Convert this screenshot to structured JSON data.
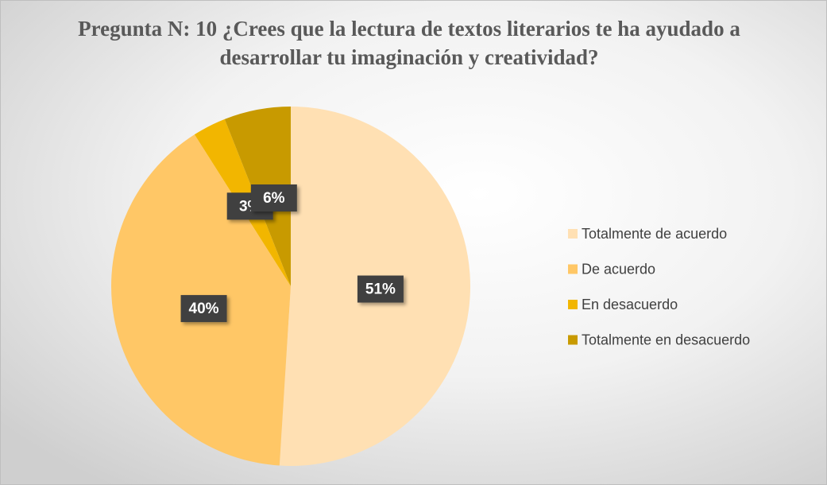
{
  "chart_data": {
    "type": "pie",
    "title": "Pregunta N: 10 ¿Crees que la lectura de textos literarios te ha ayudado a desarrollar tu imaginación y creatividad?",
    "categories": [
      "Totalmente de acuerdo",
      "De acuerdo",
      "En desacuerdo",
      "Totalmente en desacuerdo"
    ],
    "values": [
      51,
      40,
      3,
      6
    ],
    "value_labels": [
      "51%",
      "40%",
      "3%",
      "6%"
    ],
    "colors": [
      "#FFE0B3",
      "#FFC766",
      "#F2B600",
      "#C89A00"
    ],
    "legend": "right"
  }
}
